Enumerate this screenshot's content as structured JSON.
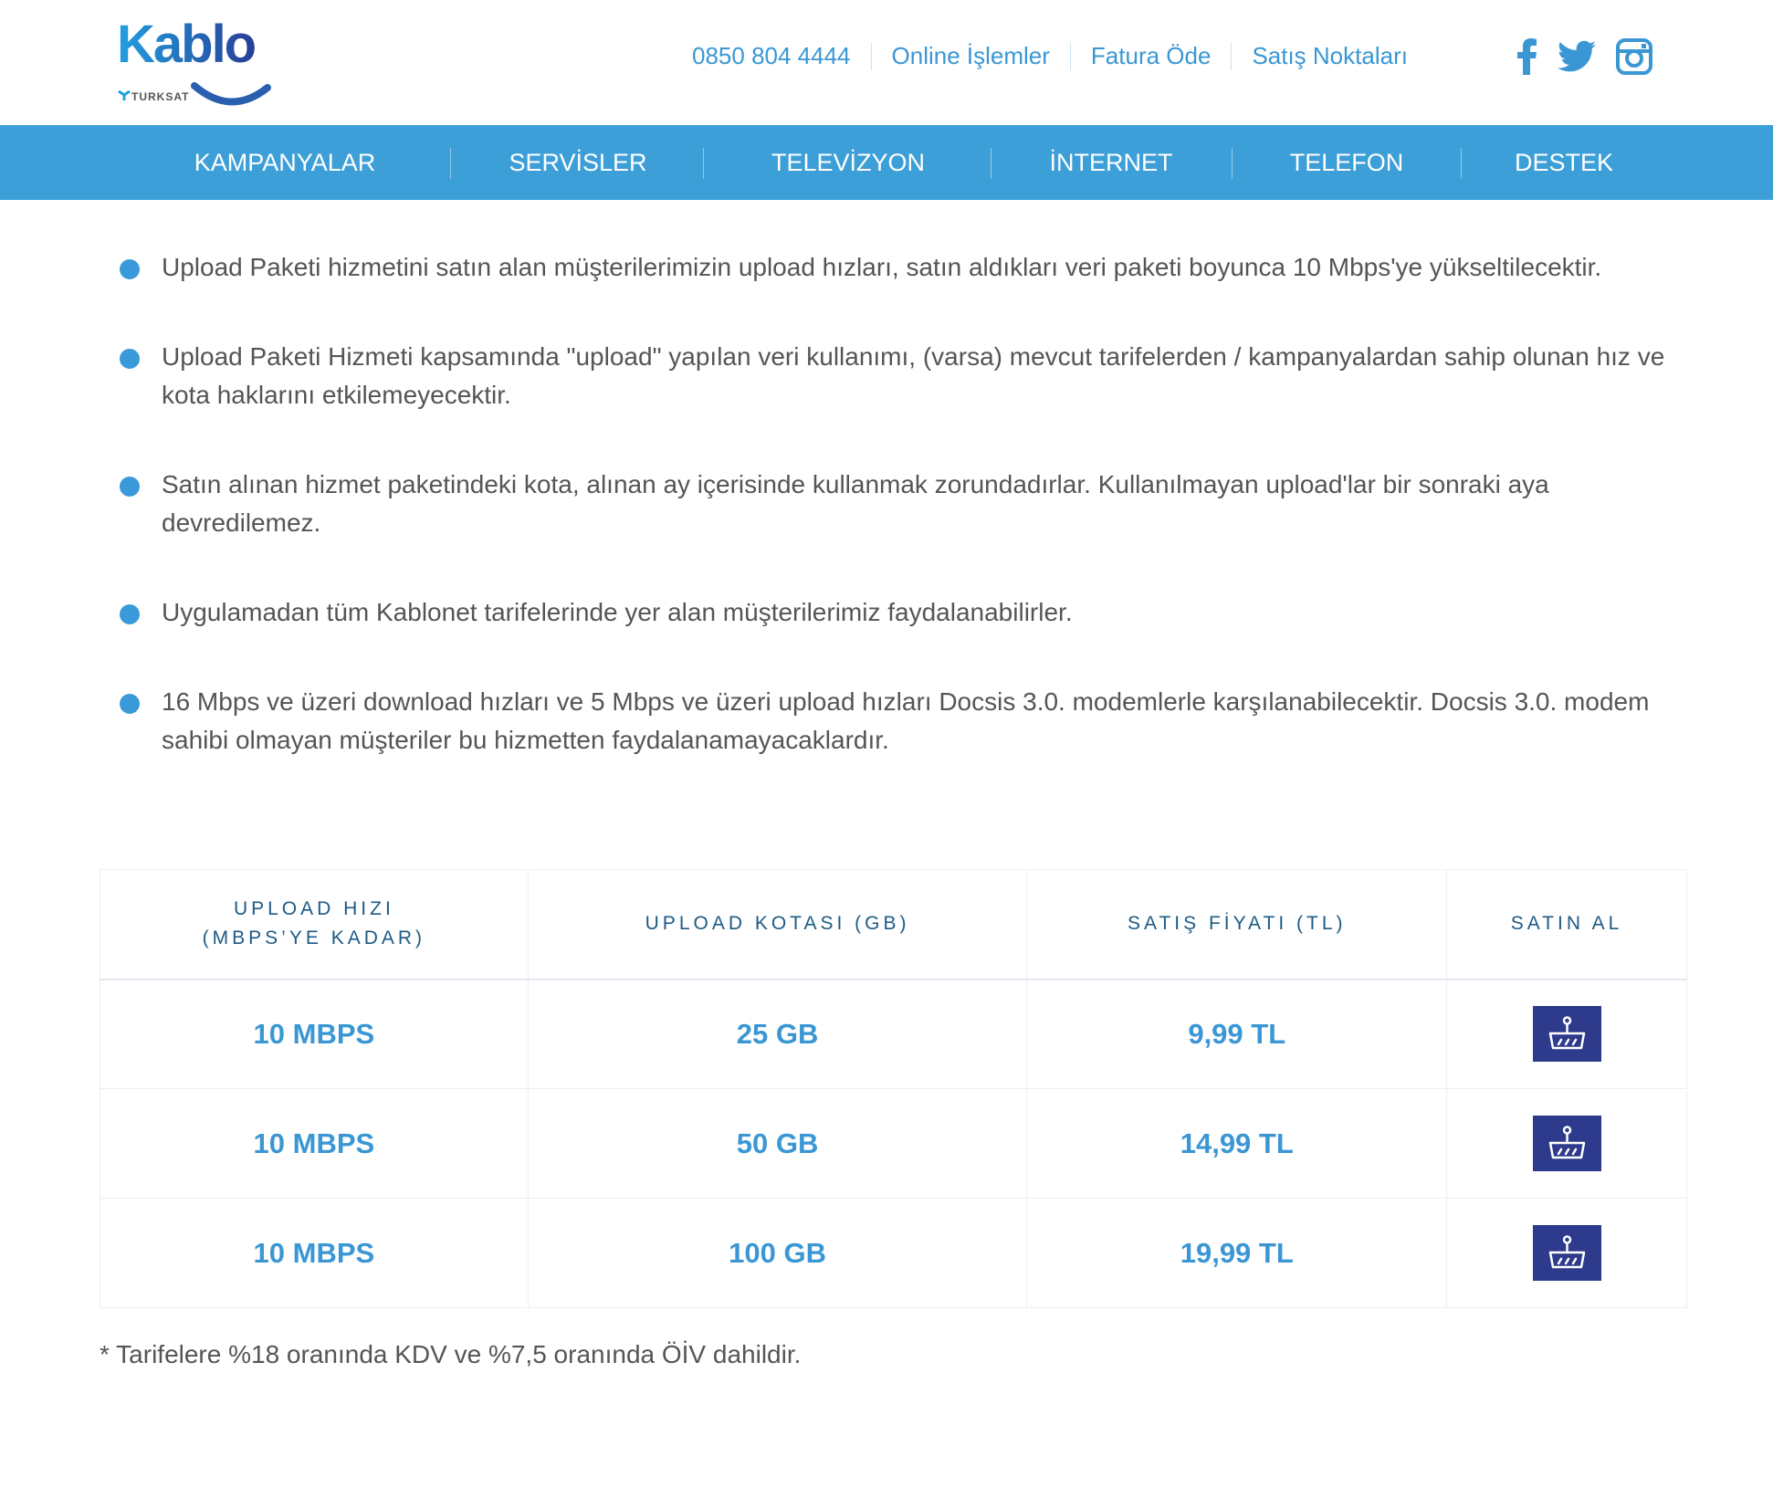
{
  "logo": {
    "text": "Kablo",
    "sub": "TURKSAT"
  },
  "toplinks": [
    "0850 804 4444",
    "Online İşlemler",
    "Fatura Öde",
    "Satış Noktaları"
  ],
  "social": [
    "facebook-icon",
    "twitter-icon",
    "instagram-icon"
  ],
  "nav": [
    "KAMPANYALAR",
    "SERVİSLER",
    "TELEVİZYON",
    "İNTERNET",
    "TELEFON",
    "DESTEK"
  ],
  "bullets": [
    "Upload Paketi hizmetini satın alan müşterilerimizin upload hızları, satın aldıkları veri paketi boyunca 10 Mbps'ye yükseltilecektir.",
    "Upload Paketi Hizmeti kapsamında \"upload\" yapılan veri kullanımı, (varsa) mevcut tarifelerden / kampanyalardan sahip olunan hız ve kota haklarını etkilemeyecektir.",
    "Satın alınan hizmet paketindeki kota, alınan ay içerisinde kullanmak zorundadırlar. Kullanılmayan upload'lar bir sonraki aya devredilemez.",
    "Uygulamadan tüm Kablonet tarifelerinde yer alan müşterilerimiz faydalanabilirler.",
    "16 Mbps ve üzeri download hızları ve 5 Mbps ve üzeri upload hızları Docsis 3.0. modemlerle karşılanabilecektir. Docsis 3.0. modem sahibi olmayan müşteriler bu hizmetten faydalanamayacaklardır."
  ],
  "table": {
    "headers": [
      "UPLOAD HIZI",
      "(MBPS’YE KADAR)",
      "UPLOAD KOTASI (GB)",
      "SATIŞ FİYATI (TL)",
      "SATIN AL"
    ],
    "rows": [
      [
        "10 MBPS",
        "25 GB",
        "9,99 TL"
      ],
      [
        "10 MBPS",
        "50 GB",
        "14,99 TL"
      ],
      [
        "10 MBPS",
        "100 GB",
        "19,99 TL"
      ]
    ]
  },
  "note": "* Tarifelere %18 oranında KDV ve %7,5 oranında ÖİV dahildir.",
  "colors": {
    "nav": "#3d9fd8",
    "accent": "#3a97d4",
    "basket": "#2e3a8c",
    "header_text": "#1d5a85"
  }
}
